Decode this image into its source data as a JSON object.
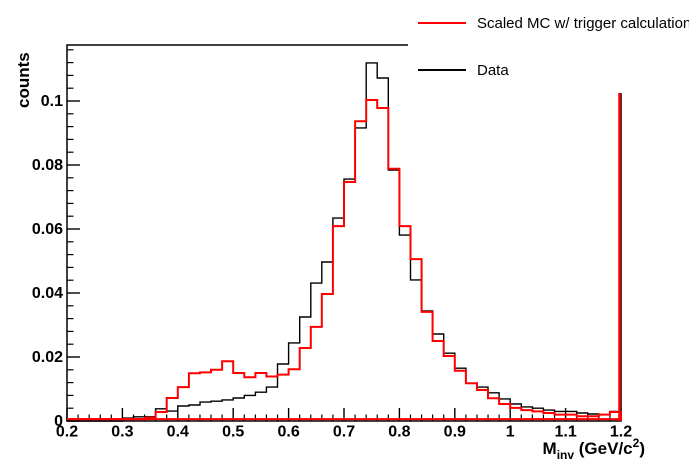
{
  "figure": {
    "background": "#ffffff",
    "frame_color": "#000000"
  },
  "legend": {
    "entries": [
      {
        "label": "Scaled MC w/ trigger calculation",
        "color": "#ff0000"
      },
      {
        "label": "Data",
        "color": "#000000"
      }
    ]
  },
  "axes": {
    "x": {
      "title_main": "M",
      "title_sub": "inv",
      "title_unit": " (GeV/c",
      "title_sup": "2",
      "title_close": ")",
      "major_ticks": [
        0.2,
        0.3,
        0.4,
        0.5,
        0.6,
        0.7,
        0.8,
        0.9,
        1.0,
        1.1,
        1.2
      ],
      "tick_labels": [
        "0.2",
        "0.3",
        "0.4",
        "0.5",
        "0.6",
        "0.7",
        "0.8",
        "0.9",
        "1",
        "1.1",
        "1.2"
      ],
      "minor_step": 0.02
    },
    "y": {
      "title": "counts",
      "major_ticks": [
        0,
        0.02,
        0.04,
        0.06,
        0.08,
        0.1
      ],
      "tick_labels": [
        "0",
        "0.02",
        "0.04",
        "0.06",
        "0.08",
        "0.1"
      ],
      "minor_step": 0.004
    }
  },
  "chart_data": {
    "type": "bar",
    "subtype": "step-histogram",
    "title": "",
    "xlabel": "M_inv (GeV/c^2)",
    "ylabel": "counts",
    "xlim": [
      0.2,
      1.2
    ],
    "ylim": [
      0,
      0.1175
    ],
    "grid": false,
    "legend_position": "top-right",
    "bin_start": 0.2,
    "bin_width": 0.02,
    "series": [
      {
        "name": "Scaled MC w/ trigger calculation",
        "color": "#ff0000",
        "line_width": 2,
        "values": [
          0.0006,
          0.0006,
          0.0006,
          0.0006,
          0.0006,
          0.0006,
          0.0006,
          0.001,
          0.0028,
          0.0072,
          0.0106,
          0.0149,
          0.0152,
          0.016,
          0.0187,
          0.015,
          0.0137,
          0.015,
          0.0139,
          0.0145,
          0.0162,
          0.0228,
          0.0294,
          0.0397,
          0.0609,
          0.0747,
          0.0937,
          0.1003,
          0.0978,
          0.0788,
          0.0609,
          0.0506,
          0.0341,
          0.025,
          0.0203,
          0.0157,
          0.0118,
          0.0097,
          0.0071,
          0.0053,
          0.0041,
          0.0034,
          0.003,
          0.0025,
          0.002,
          0.002,
          0.0015,
          0.0015,
          0.002,
          0.0028
        ]
      },
      {
        "name": "Data",
        "color": "#000000",
        "line_width": 1.4,
        "values": [
          0,
          0,
          0,
          0,
          0,
          0.0009,
          0.0013,
          0.0013,
          0.0038,
          0.0031,
          0.0047,
          0.005,
          0.0059,
          0.0062,
          0.0066,
          0.0072,
          0.008,
          0.009,
          0.0106,
          0.0178,
          0.0244,
          0.0325,
          0.0431,
          0.0497,
          0.0634,
          0.0756,
          0.0916,
          0.1119,
          0.1072,
          0.0784,
          0.0581,
          0.0441,
          0.0344,
          0.0272,
          0.0212,
          0.0165,
          0.0118,
          0.0106,
          0.0088,
          0.0069,
          0.0053,
          0.0044,
          0.004,
          0.0034,
          0.003,
          0.003,
          0.0025,
          0.0022,
          0.002,
          0.003
        ]
      }
    ],
    "red_baseline": {
      "color": "#ff0000",
      "value": 0.0006,
      "edge_spike_x": 1.2,
      "edge_spike_top": 0.1175
    }
  }
}
